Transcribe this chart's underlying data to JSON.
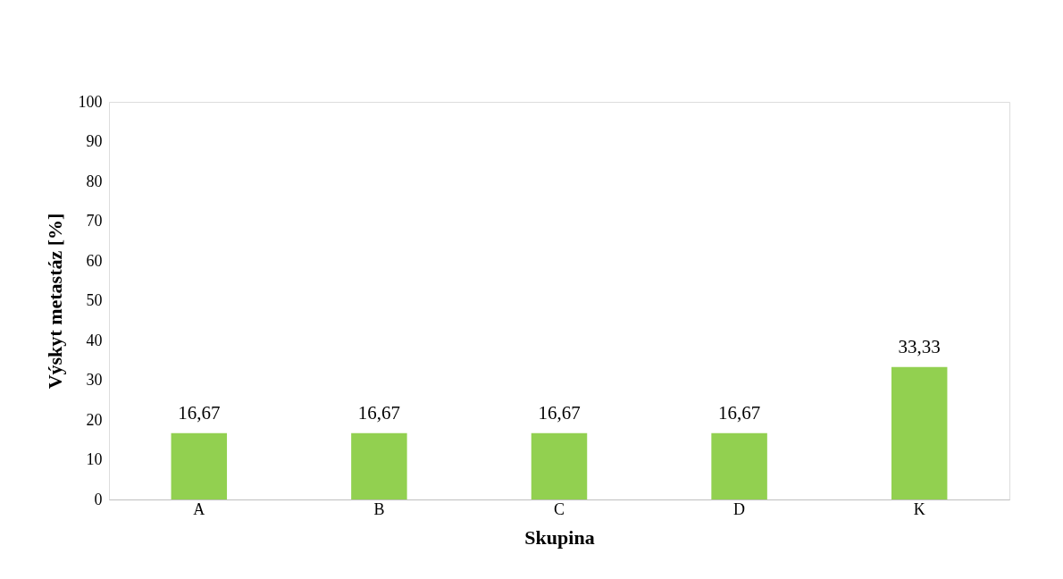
{
  "chart_data": {
    "type": "bar",
    "xlabel": "Skupina",
    "ylabel": "Výskyt metastáz [%]",
    "categories": [
      "A",
      "B",
      "C",
      "D",
      "K"
    ],
    "values": [
      16.67,
      16.67,
      16.67,
      16.67,
      33.33
    ],
    "value_labels": [
      "16,67",
      "16,67",
      "16,67",
      "16,67",
      "33,33"
    ],
    "color": "#92d050",
    "ylim": [
      0,
      100
    ],
    "yticks": [
      0,
      10,
      20,
      30,
      40,
      50,
      60,
      70,
      80,
      90,
      100
    ],
    "grid": false
  }
}
